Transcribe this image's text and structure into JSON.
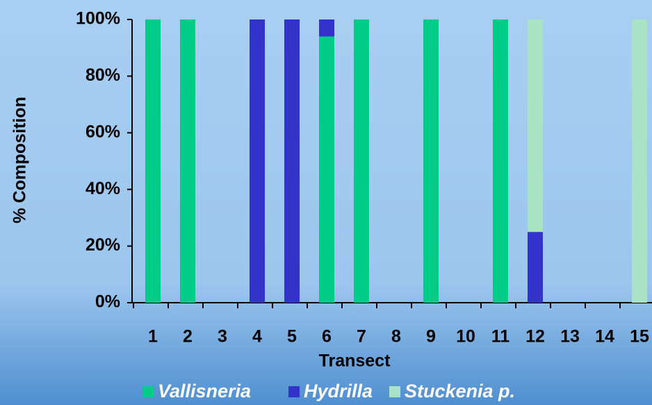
{
  "chart_data": {
    "type": "stacked_bar",
    "x_label": "Transect",
    "y_label": "% Composition",
    "categories": [
      "1",
      "2",
      "3",
      "4",
      "5",
      "6",
      "7",
      "8",
      "9",
      "10",
      "11",
      "12",
      "13",
      "14",
      "15"
    ],
    "series": [
      {
        "name": "Vallisneria",
        "color": "#00cc88",
        "values": [
          100,
          100,
          0,
          0,
          0,
          94,
          100,
          0,
          100,
          0,
          100,
          0,
          0,
          0,
          0
        ]
      },
      {
        "name": "Hydrilla",
        "color": "#3333cc",
        "values": [
          0,
          0,
          0,
          100,
          100,
          6,
          0,
          0,
          0,
          0,
          0,
          25,
          0,
          0,
          0
        ]
      },
      {
        "name": "Stuckenia p.",
        "color": "#a8e4c4",
        "values": [
          0,
          0,
          0,
          0,
          0,
          0,
          0,
          0,
          0,
          0,
          0,
          75,
          0,
          0,
          100
        ]
      }
    ],
    "ylim": [
      0,
      100
    ],
    "yticks": [
      {
        "value": 0,
        "label": "0%"
      },
      {
        "value": 20,
        "label": "20%"
      },
      {
        "value": 40,
        "label": "40%"
      },
      {
        "value": 60,
        "label": "60%"
      },
      {
        "value": 80,
        "label": "80%"
      },
      {
        "value": 100,
        "label": "100%"
      }
    ]
  }
}
